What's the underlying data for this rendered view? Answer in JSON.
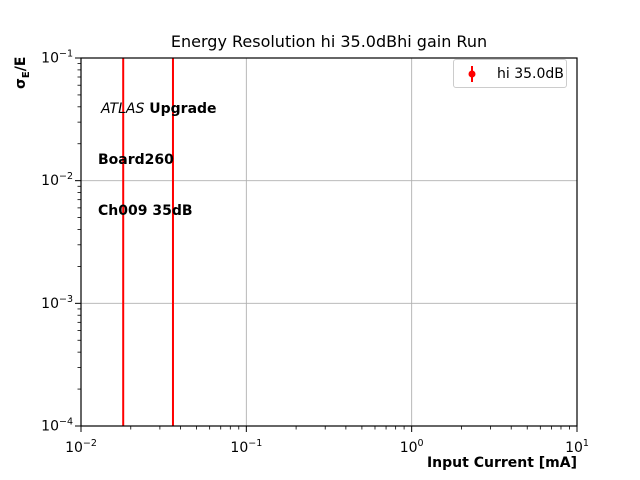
{
  "figure": {
    "background_color": "#ffffff"
  },
  "chart_data": {
    "type": "scatter",
    "title": "Energy Resolution hi 35.0dBhi gain Run",
    "xlabel": "Input Current [mA]",
    "ylabel": "σE/E",
    "ylabel_parts": {
      "symbol": "σ",
      "subscript": "E",
      "suffix": "/E"
    },
    "xscale": "log",
    "yscale": "log",
    "xlim": [
      0.01,
      10
    ],
    "ylim": [
      0.0001,
      0.1
    ],
    "x_tick_exponents": [
      -2,
      -1,
      0,
      1
    ],
    "y_tick_exponents": [
      -4,
      -3,
      -2,
      -1
    ],
    "x_tick_labels": [
      "10^-2",
      "10^-1",
      "10^0",
      "10^1"
    ],
    "y_tick_labels": [
      "10^-4",
      "10^-3",
      "10^-2",
      "10^-1"
    ],
    "grid": true,
    "grid_color": "#b0b0b0",
    "axis_color": "#000000",
    "series": [
      {
        "name": "hi 35.0dB",
        "color": "#ff0000",
        "marker": "circle-with-errorbar",
        "points": [
          {
            "x": 0.018,
            "error_bar_spans_full_y_range": true
          },
          {
            "x": 0.036,
            "error_bar_spans_full_y_range": true
          }
        ]
      }
    ],
    "legend": {
      "position": "upper-right",
      "label": "hi 35.0dB",
      "marker_color": "#ff0000",
      "border_color": "#cccccc"
    },
    "annotation": {
      "line1_italic": "ATLAS",
      "line1_bold": " Upgrade",
      "line2": "Board260",
      "line3": "Ch009 35dB"
    }
  }
}
